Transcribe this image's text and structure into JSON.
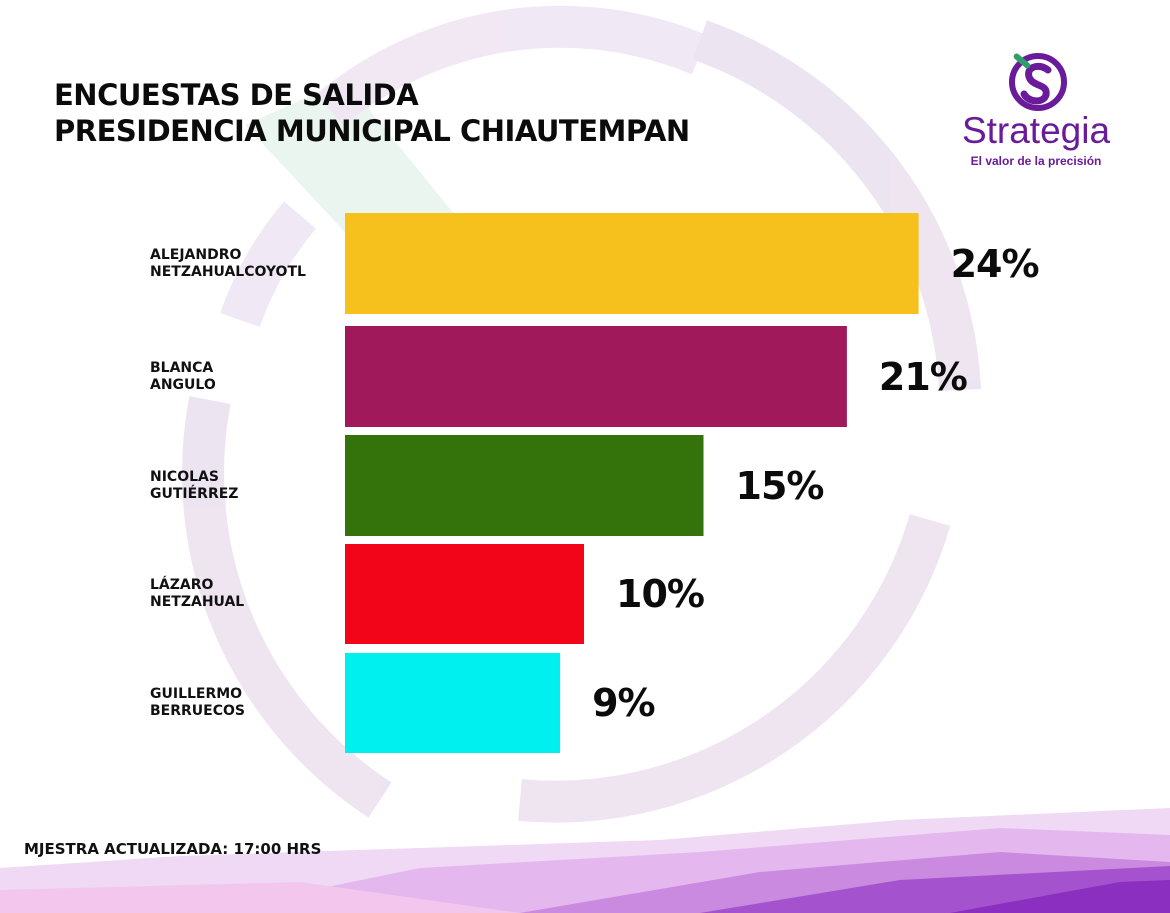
{
  "title_lines": [
    "ENCUESTAS DE SALIDA",
    "PRESIDENCIA MUNICIPAL CHIAUTEMPAN"
  ],
  "logo": {
    "name": "Strategia",
    "tagline": "El valor de la precisión",
    "color": "#6a1b9a"
  },
  "footer_note": "MJESTRA ACTUALIZADA: 17:00 HRS",
  "chart_data": {
    "type": "bar",
    "orientation": "horizontal",
    "categories": [
      "ALEJANDRO\nNETZAHUALCOYOTL",
      "BLANCA\nANGULO",
      "NICOLAS\nGUTIÉRREZ",
      "LÁZARO\nNETZAHUAL",
      "GUILLERMO\nBERRUECOS"
    ],
    "values": [
      24,
      21,
      15,
      10,
      9
    ],
    "value_labels": [
      "24%",
      "21%",
      "15%",
      "10%",
      "9%"
    ],
    "colors": [
      "#f6c11c",
      "#a0195a",
      "#34720b",
      "#f20519",
      "#00f0f0"
    ],
    "unit": "%",
    "grid": false,
    "legend": "none"
  }
}
